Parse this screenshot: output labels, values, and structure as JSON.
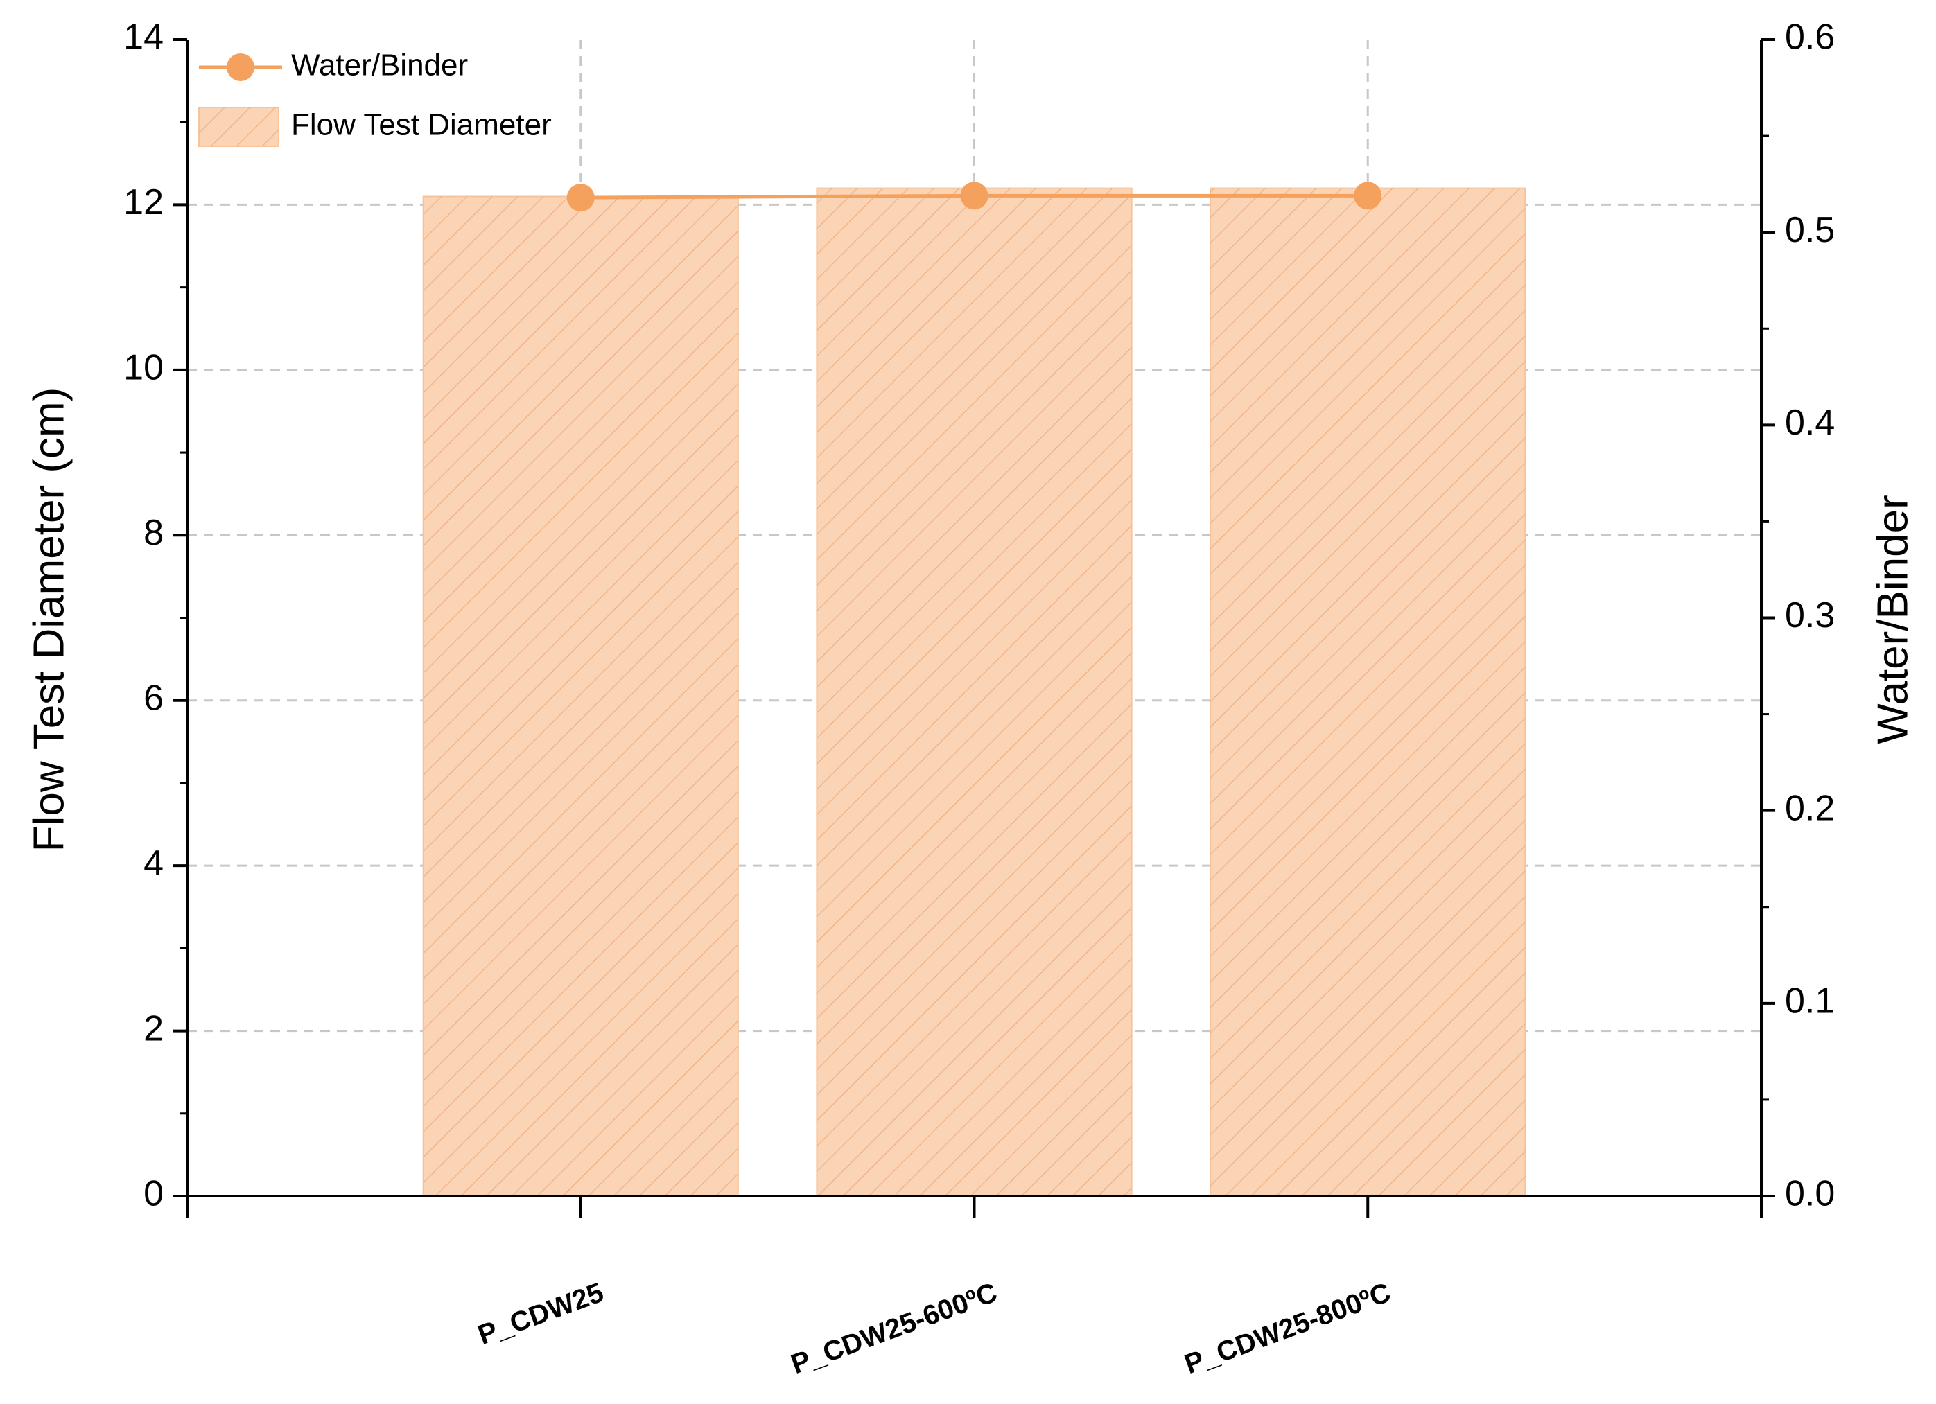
{
  "chart_data": {
    "type": "bar",
    "y_label": "Flow Test Diameter (cm)",
    "y2_label": "Water/Binder",
    "categories": [
      "P_CDW25",
      "P_CDW25-600ºC",
      "P_CDW25-800ºC"
    ],
    "series": [
      {
        "name": "Water/Binder",
        "type": "line",
        "axis": "y2",
        "color": "#f5a15e",
        "values": [
          0.518,
          0.519,
          0.519
        ]
      },
      {
        "name": "Flow Test Diameter",
        "type": "bar",
        "color": "#fad4b4",
        "values": [
          12.1,
          12.2,
          12.2
        ]
      }
    ],
    "ylim": [
      0,
      14
    ],
    "yticks": [
      0,
      2,
      4,
      6,
      8,
      10,
      12,
      14
    ],
    "y2lim": [
      0,
      0.6
    ],
    "y2ticks": [
      {
        "value": 0,
        "label": "0.0"
      },
      0.1,
      0.2,
      0.3,
      0.4,
      0.5,
      0.6
    ],
    "grid": true,
    "legend": "top-left"
  }
}
